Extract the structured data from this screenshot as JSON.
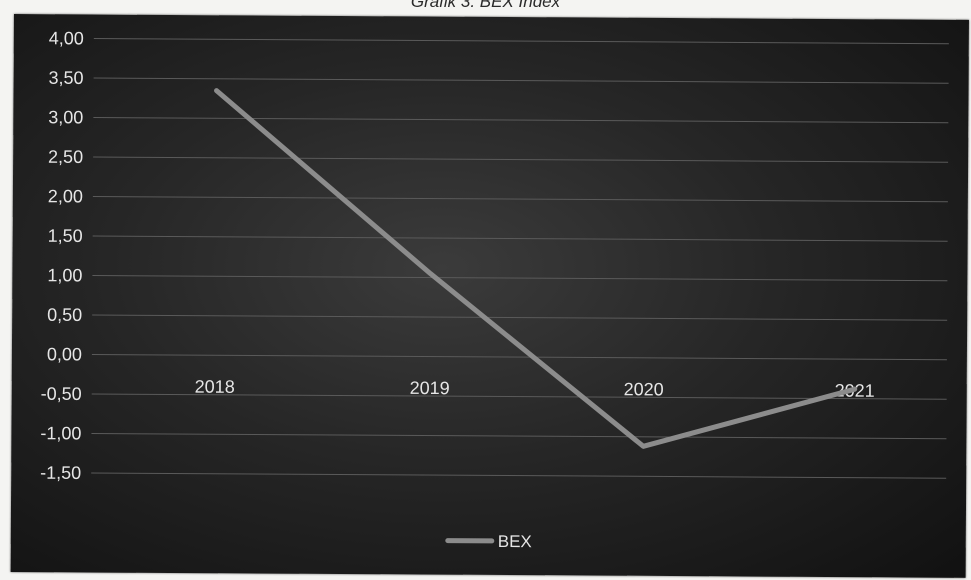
{
  "page": {
    "title": "Grafik 3. BEX Index"
  },
  "chart_data": {
    "type": "line",
    "title": "Grafik 3. BEX Index",
    "categories": [
      "2018",
      "2019",
      "2020",
      "2021"
    ],
    "series": [
      {
        "name": "BEX",
        "values": [
          3.35,
          1.05,
          -1.12,
          -0.38
        ],
        "color": "#8c8c8c"
      }
    ],
    "y_ticks": [
      "4,00",
      "3,50",
      "3,00",
      "2,50",
      "2,00",
      "1,50",
      "1,00",
      "0,50",
      "0,00",
      "-0,50",
      "-1,00",
      "-1,50"
    ],
    "ylim": [
      -1.5,
      4.0
    ],
    "grid": true,
    "legend": "bottom",
    "background": "#262626",
    "xlabel": "",
    "ylabel": ""
  }
}
